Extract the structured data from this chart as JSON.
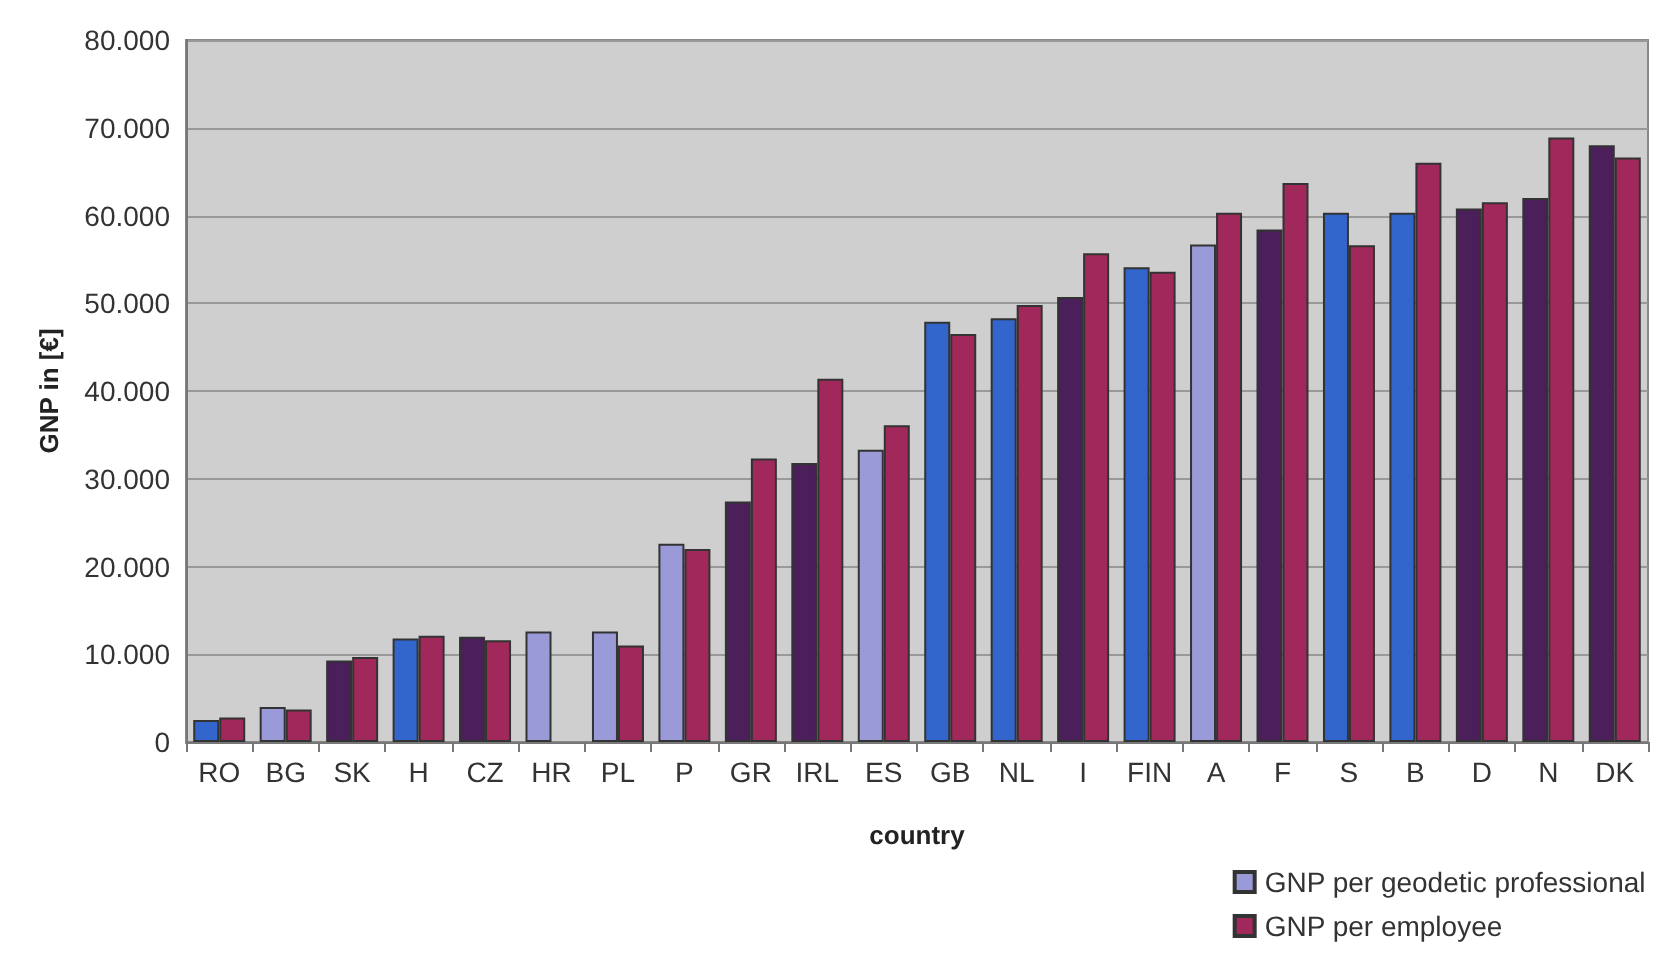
{
  "chart_data": {
    "type": "bar",
    "xlabel": "country",
    "ylabel": "GNP in [€]",
    "categories": [
      "RO",
      "BG",
      "SK",
      "H",
      "CZ",
      "HR",
      "PL",
      "P",
      "GR",
      "IRL",
      "ES",
      "GB",
      "NL",
      "I",
      "FIN",
      "A",
      "F",
      "S",
      "B",
      "D",
      "N",
      "DK"
    ],
    "series": [
      {
        "name": "GNP per geodetic professional",
        "color": "#9a9ad8",
        "colors": [
          "#3366cc",
          "#9a9ad8",
          "#4a1f5a",
          "#3366cc",
          "#4a1f5a",
          "#9a9ad8",
          "#9a9ad8",
          "#9a9ad8",
          "#4a1f5a",
          "#4a1f5a",
          "#9a9ad8",
          "#3366cc",
          "#3366cc",
          "#4a1f5a",
          "#3366cc",
          "#9a9ad8",
          "#4a1f5a",
          "#3366cc",
          "#3366cc",
          "#4a1f5a",
          "#4a1f5a",
          "#4a1f5a"
        ],
        "values": [
          2500,
          4000,
          9300,
          11800,
          12000,
          12600,
          12600,
          22600,
          27400,
          31800,
          33300,
          47900,
          48300,
          50700,
          54100,
          56700,
          58400,
          60300,
          60300,
          60800,
          62000,
          68000
        ]
      },
      {
        "name": "GNP per employee",
        "color": "#a0285a",
        "values": [
          2800,
          3700,
          9700,
          12100,
          11600,
          null,
          11000,
          22000,
          32300,
          41400,
          36100,
          46500,
          49800,
          55700,
          53600,
          60300,
          63700,
          56600,
          66000,
          61500,
          68900,
          66600
        ]
      }
    ],
    "ylim": [
      0,
      80000
    ],
    "yticks": [
      {
        "value": 0,
        "label": "0"
      },
      {
        "value": 10000,
        "label": "10.000"
      },
      {
        "value": 20000,
        "label": "20.000"
      },
      {
        "value": 30000,
        "label": "30.000"
      },
      {
        "value": 40000,
        "label": "40.000"
      },
      {
        "value": 50000,
        "label": "50.000"
      },
      {
        "value": 60000,
        "label": "60.000"
      },
      {
        "value": 70000,
        "label": "70.000"
      },
      {
        "value": 80000,
        "label": "80.000"
      }
    ],
    "grid": "y",
    "legend": "bottom right"
  }
}
